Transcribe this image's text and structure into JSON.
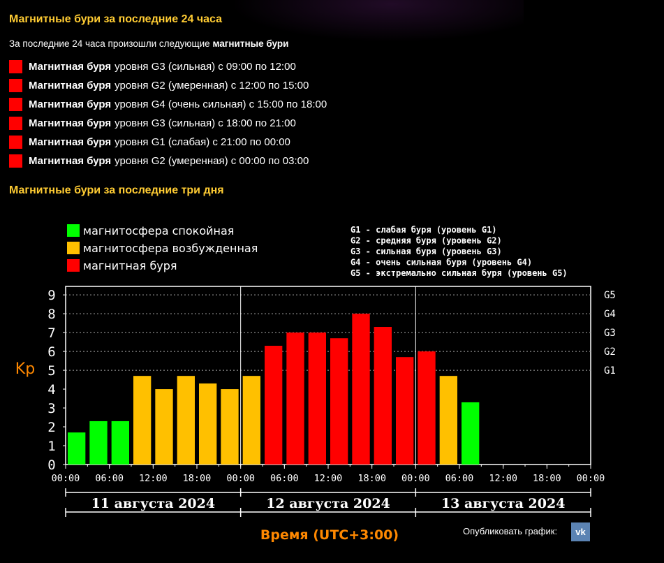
{
  "page": {
    "title": "Магнитные бури за последние 24 часа",
    "intro_prefix": "За последние 24 часа произошли следующие ",
    "intro_bold": "магнитные бури",
    "storm_word": "Магнитная буря",
    "storms": [
      {
        "text": "уровня G3 (сильная) с 09:00 по 12:00"
      },
      {
        "text": "уровня G2 (умеренная) с 12:00 по 15:00"
      },
      {
        "text": "уровня G4 (очень сильная) с 15:00 по 18:00"
      },
      {
        "text": "уровня G3 (сильная) с 18:00 по 21:00"
      },
      {
        "text": "уровня G1 (слабая) с 21:00 по 00:00"
      },
      {
        "text": "уровня G2 (умеренная) с 00:00 по 03:00"
      }
    ],
    "section2_title": "Магнитные бури за последние три дня",
    "publish_label": "Опубликовать график:",
    "vk_label": "vk"
  },
  "colors": {
    "quiet": "#00ff00",
    "disturbed": "#ffc000",
    "storm": "#ff0000",
    "heading": "#ffcc33",
    "axis_title": "#ff8800"
  },
  "chart_data": {
    "type": "bar",
    "ylabel": "Kp",
    "xlabel": "Время (UTC+3:00)",
    "ylim": [
      0,
      9
    ],
    "yticks": [
      "0",
      "1",
      "2",
      "3",
      "4",
      "5",
      "6",
      "7",
      "8",
      "9"
    ],
    "g_levels": [
      {
        "label": "G1",
        "kp": 5
      },
      {
        "label": "G2",
        "kp": 6
      },
      {
        "label": "G3",
        "kp": 7
      },
      {
        "label": "G4",
        "kp": 8
      },
      {
        "label": "G5",
        "kp": 9
      }
    ],
    "legend": [
      {
        "label": "магнитосфера спокойная",
        "color": "#00ff00"
      },
      {
        "label": "магнитосфера возбужденная",
        "color": "#ffc000"
      },
      {
        "label": "магнитная буря",
        "color": "#ff0000"
      }
    ],
    "g_legend": [
      "G1 - слабая буря (уровень G1)",
      "G2 - средняя буря (уровень G2)",
      "G3 - сильная буря (уровень G3)",
      "G4 - очень сильная буря (уровень G4)",
      "G5 - экстремально сильная буря (уровень G5)"
    ],
    "x_tick_labels": [
      "00:00",
      "06:00",
      "12:00",
      "18:00",
      "00:00",
      "06:00",
      "12:00",
      "18:00",
      "00:00",
      "06:00",
      "12:00",
      "18:00",
      "00:00"
    ],
    "days": [
      "11 августа 2024",
      "12 августа 2024",
      "13 августа 2024"
    ],
    "slots_total": 24,
    "values": [
      1.7,
      2.3,
      2.3,
      4.7,
      4.0,
      4.7,
      4.3,
      4.0,
      4.7,
      6.3,
      7.0,
      7.0,
      6.7,
      8.0,
      7.3,
      5.7,
      6.0,
      4.7,
      3.3
    ],
    "thresholds": {
      "disturbed": 4,
      "storm": 5
    }
  }
}
